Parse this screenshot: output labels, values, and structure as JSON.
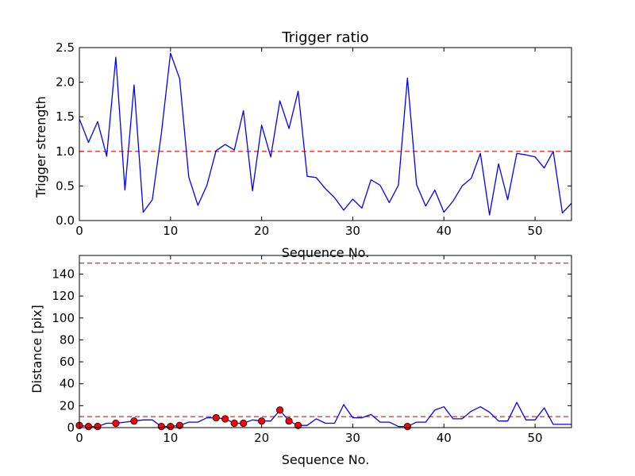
{
  "chart_data": [
    {
      "type": "line",
      "title": "Trigger ratio",
      "xlabel": "Sequence No.",
      "ylabel": "Trigger strength",
      "xlim": [
        0,
        54
      ],
      "ylim": [
        0,
        2.5
      ],
      "xticks": [
        0,
        10,
        20,
        30,
        40,
        50
      ],
      "yticks": [
        0.0,
        0.5,
        1.0,
        1.5,
        2.0,
        2.5
      ],
      "grid": false,
      "line_color": "#0000ff",
      "threshold": {
        "value": 1.0,
        "color": "#ff0000",
        "style": "dashed"
      },
      "x": [
        0,
        1,
        2,
        3,
        4,
        5,
        6,
        7,
        8,
        9,
        10,
        11,
        12,
        13,
        14,
        15,
        16,
        17,
        18,
        19,
        20,
        21,
        22,
        23,
        24,
        25,
        26,
        27,
        28,
        29,
        30,
        31,
        32,
        33,
        34,
        35,
        36,
        37,
        38,
        39,
        40,
        41,
        42,
        43,
        44,
        45,
        46,
        47,
        48,
        49,
        50,
        51,
        52,
        53,
        54
      ],
      "y": [
        1.47,
        1.13,
        1.43,
        0.93,
        2.36,
        0.44,
        1.96,
        0.12,
        0.3,
        1.26,
        2.42,
        2.05,
        0.63,
        0.22,
        0.51,
        1.01,
        1.1,
        1.02,
        1.59,
        0.43,
        1.38,
        0.92,
        1.73,
        1.33,
        1.87,
        0.64,
        0.62,
        0.46,
        0.33,
        0.15,
        0.31,
        0.18,
        0.59,
        0.51,
        0.26,
        0.51,
        2.06,
        0.52,
        0.21,
        0.44,
        0.12,
        0.28,
        0.5,
        0.61,
        0.97,
        0.08,
        0.82,
        0.3,
        0.97,
        0.95,
        0.92,
        0.76,
        1.0,
        0.11,
        0.25
      ]
    },
    {
      "type": "line",
      "title": "",
      "xlabel": "Sequence No.",
      "ylabel": "Distance [pix]",
      "xlim": [
        0,
        54
      ],
      "ylim": [
        0,
        157
      ],
      "xticks": [
        0,
        10,
        20,
        30,
        40,
        50
      ],
      "yticks": [
        0,
        20,
        40,
        60,
        80,
        100,
        120,
        140
      ],
      "grid": false,
      "line_color": "#0000ff",
      "marker_color": "#ff0000",
      "thresholds": [
        {
          "value": 10,
          "color": "#ff0000",
          "style": "dashed"
        },
        {
          "value": 150,
          "color": "#ff0000",
          "style": "dashed"
        }
      ],
      "x": [
        0,
        1,
        2,
        3,
        4,
        5,
        6,
        7,
        8,
        9,
        10,
        11,
        12,
        13,
        14,
        15,
        16,
        17,
        18,
        19,
        20,
        21,
        22,
        23,
        24,
        25,
        26,
        27,
        28,
        29,
        30,
        31,
        32,
        33,
        34,
        35,
        36,
        37,
        38,
        39,
        40,
        41,
        42,
        43,
        44,
        45,
        46,
        47,
        48,
        49,
        50,
        51,
        52,
        53,
        54
      ],
      "y": [
        2,
        1,
        1,
        4,
        4,
        5,
        6,
        7,
        7,
        1,
        1,
        2,
        5,
        5,
        9,
        9,
        8,
        4,
        4,
        7,
        6,
        6,
        16,
        6,
        2,
        2,
        8,
        4,
        4,
        21,
        9,
        9,
        12,
        5,
        5,
        1,
        1,
        5,
        5,
        16,
        19,
        8,
        8,
        15,
        19,
        14,
        6,
        6,
        23,
        7,
        7,
        18,
        3,
        3,
        3
      ],
      "markers": [
        {
          "x": 0,
          "y": 2
        },
        {
          "x": 1,
          "y": 1
        },
        {
          "x": 2,
          "y": 1
        },
        {
          "x": 4,
          "y": 4
        },
        {
          "x": 6,
          "y": 6
        },
        {
          "x": 9,
          "y": 1
        },
        {
          "x": 10,
          "y": 1
        },
        {
          "x": 11,
          "y": 2
        },
        {
          "x": 15,
          "y": 9
        },
        {
          "x": 16,
          "y": 8
        },
        {
          "x": 17,
          "y": 4
        },
        {
          "x": 18,
          "y": 4
        },
        {
          "x": 20,
          "y": 6
        },
        {
          "x": 22,
          "y": 16
        },
        {
          "x": 23,
          "y": 6
        },
        {
          "x": 24,
          "y": 2
        },
        {
          "x": 36,
          "y": 1
        }
      ]
    }
  ]
}
